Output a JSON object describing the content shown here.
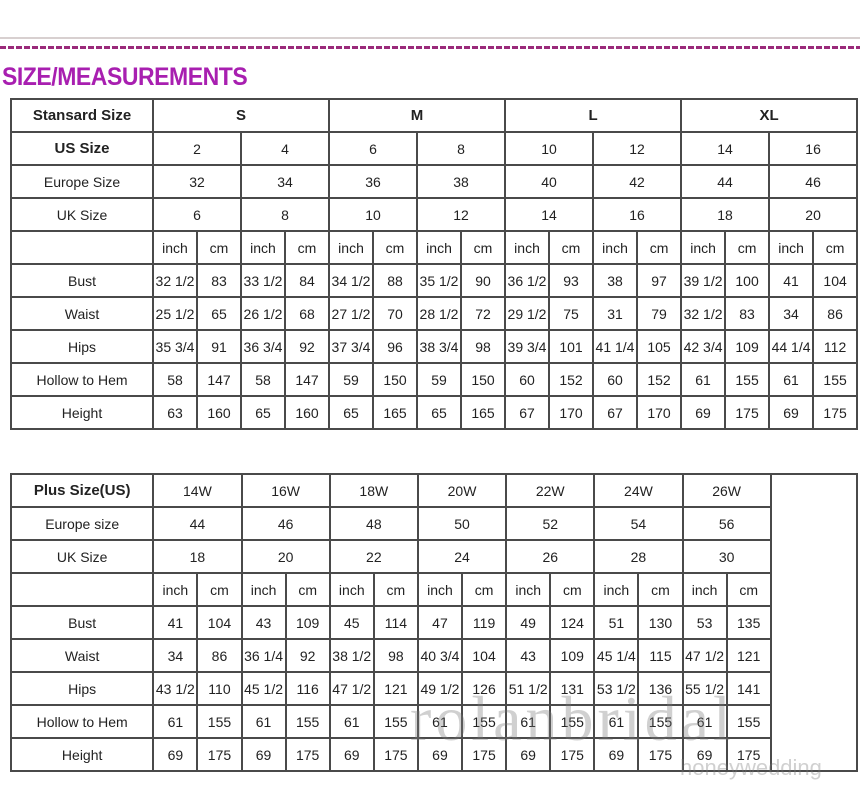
{
  "title": "SIZE/MEASUREMENTS",
  "standard_table": {
    "header_label": "Stansard Size",
    "sizes": [
      "S",
      "M",
      "L",
      "XL"
    ],
    "us_label": "US Size",
    "us_sizes": [
      "2",
      "4",
      "6",
      "8",
      "10",
      "12",
      "14",
      "16"
    ],
    "europe_label": "Europe Size",
    "europe_sizes": [
      "32",
      "34",
      "36",
      "38",
      "40",
      "42",
      "44",
      "46"
    ],
    "uk_label": "UK Size",
    "uk_sizes": [
      "6",
      "8",
      "10",
      "12",
      "14",
      "16",
      "18",
      "20"
    ],
    "unit_inch": "inch",
    "unit_cm": "cm",
    "rows": [
      {
        "label": "Bust",
        "values": [
          "32 1/2",
          "83",
          "33 1/2",
          "84",
          "34 1/2",
          "88",
          "35 1/2",
          "90",
          "36 1/2",
          "93",
          "38",
          "97",
          "39 1/2",
          "100",
          "41",
          "104"
        ]
      },
      {
        "label": "Waist",
        "values": [
          "25 1/2",
          "65",
          "26 1/2",
          "68",
          "27 1/2",
          "70",
          "28 1/2",
          "72",
          "29 1/2",
          "75",
          "31",
          "79",
          "32 1/2",
          "83",
          "34",
          "86"
        ]
      },
      {
        "label": "Hips",
        "values": [
          "35 3/4",
          "91",
          "36 3/4",
          "92",
          "37 3/4",
          "96",
          "38 3/4",
          "98",
          "39 3/4",
          "101",
          "41 1/4",
          "105",
          "42 3/4",
          "109",
          "44 1/4",
          "112"
        ]
      },
      {
        "label": "Hollow to Hem",
        "values": [
          "58",
          "147",
          "58",
          "147",
          "59",
          "150",
          "59",
          "150",
          "60",
          "152",
          "60",
          "152",
          "61",
          "155",
          "61",
          "155"
        ]
      },
      {
        "label": "Height",
        "values": [
          "63",
          "160",
          "65",
          "160",
          "65",
          "165",
          "65",
          "165",
          "67",
          "170",
          "67",
          "170",
          "69",
          "175",
          "69",
          "175"
        ]
      }
    ]
  },
  "plus_table": {
    "header_label": "Plus Size(US)",
    "sizes": [
      "14W",
      "16W",
      "18W",
      "20W",
      "22W",
      "24W",
      "26W"
    ],
    "europe_label": "Europe size",
    "europe_sizes": [
      "44",
      "46",
      "48",
      "50",
      "52",
      "54",
      "56"
    ],
    "uk_label": "UK Size",
    "uk_sizes": [
      "18",
      "20",
      "22",
      "24",
      "26",
      "28",
      "30"
    ],
    "unit_inch": "inch",
    "unit_cm": "cm",
    "rows": [
      {
        "label": "Bust",
        "values": [
          "41",
          "104",
          "43",
          "109",
          "45",
          "114",
          "47",
          "119",
          "49",
          "124",
          "51",
          "130",
          "53",
          "135"
        ]
      },
      {
        "label": "Waist",
        "values": [
          "34",
          "86",
          "36 1/4",
          "92",
          "38 1/2",
          "98",
          "40 3/4",
          "104",
          "43",
          "109",
          "45 1/4",
          "115",
          "47 1/2",
          "121"
        ]
      },
      {
        "label": "Hips",
        "values": [
          "43 1/2",
          "110",
          "45 1/2",
          "116",
          "47 1/2",
          "121",
          "49 1/2",
          "126",
          "51 1/2",
          "131",
          "53 1/2",
          "136",
          "55 1/2",
          "141"
        ]
      },
      {
        "label": "Hollow to Hem",
        "values": [
          "61",
          "155",
          "61",
          "155",
          "61",
          "155",
          "61",
          "155",
          "61",
          "155",
          "61",
          "155",
          "61",
          "155"
        ]
      },
      {
        "label": "Height",
        "values": [
          "69",
          "175",
          "69",
          "175",
          "69",
          "175",
          "69",
          "175",
          "69",
          "175",
          "69",
          "175",
          "69",
          "175"
        ]
      }
    ]
  },
  "watermark": {
    "main": "rolanbridal",
    "sub": "honeywedding"
  },
  "colors": {
    "title": "#a81fb0",
    "dash": "#9a2a7a",
    "border": "#4a4a4a"
  }
}
